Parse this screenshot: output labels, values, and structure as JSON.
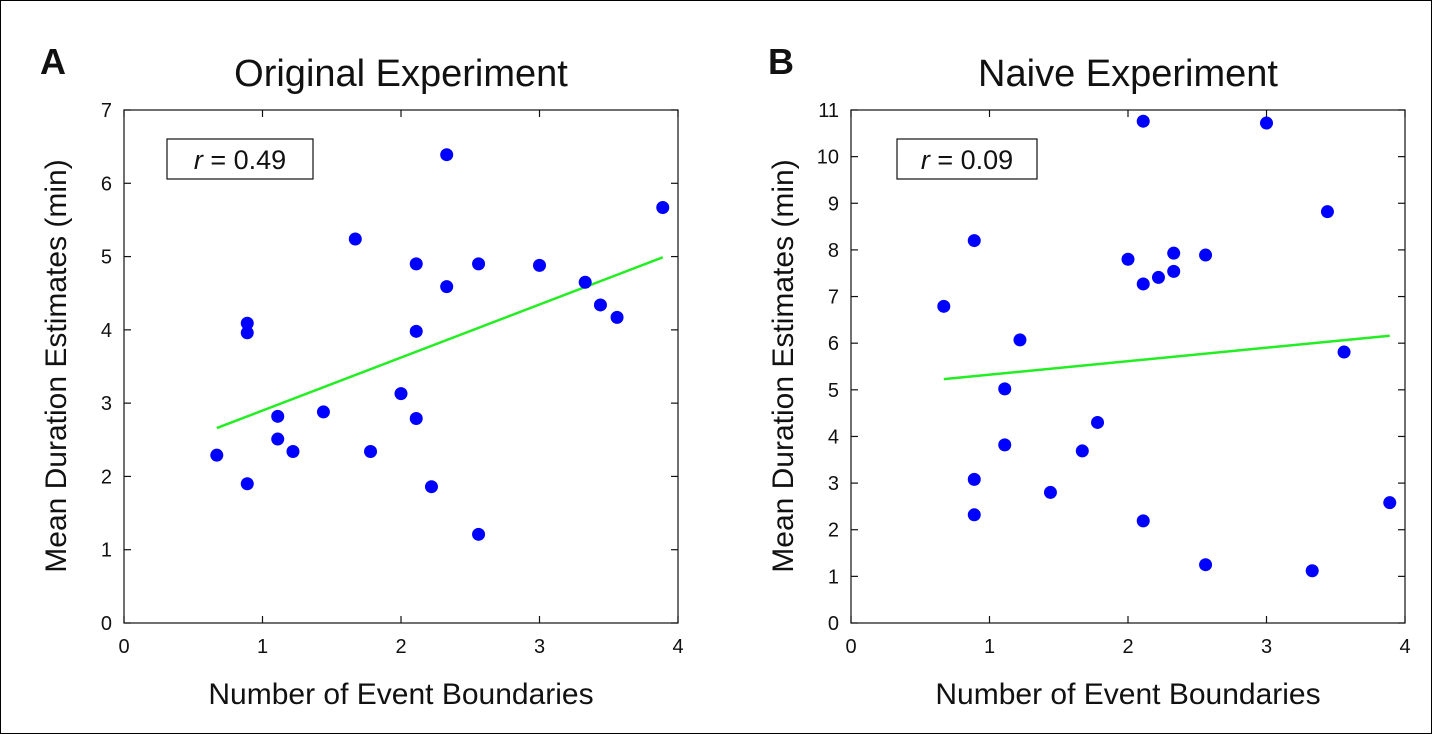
{
  "chart_data": [
    {
      "type": "scatter",
      "panel_letter": "A",
      "title": "Original Experiment",
      "xlabel": "Number of Event Boundaries",
      "ylabel": "Mean Duration Estimates (min)",
      "xlim": [
        0,
        4
      ],
      "ylim": [
        0,
        7
      ],
      "xticks": [
        "0",
        "1",
        "2",
        "3",
        "4"
      ],
      "yticks": [
        "0",
        "1",
        "2",
        "3",
        "4",
        "5",
        "6",
        "7"
      ],
      "grid": false,
      "annotation": {
        "r_symbol": "r",
        "r_value": "= 0.49"
      },
      "point_color": "#0000ff",
      "line_color": "#22ee22",
      "fit_line": [
        [
          0.67,
          2.66
        ],
        [
          3.89,
          4.99
        ]
      ],
      "points": [
        [
          0.67,
          2.29
        ],
        [
          0.89,
          4.09
        ],
        [
          0.89,
          3.96
        ],
        [
          0.89,
          1.9
        ],
        [
          1.11,
          2.82
        ],
        [
          1.11,
          2.51
        ],
        [
          1.22,
          2.34
        ],
        [
          1.44,
          2.88
        ],
        [
          1.67,
          5.24
        ],
        [
          1.78,
          2.34
        ],
        [
          2.0,
          3.13
        ],
        [
          2.11,
          4.9
        ],
        [
          2.11,
          3.98
        ],
        [
          2.11,
          2.79
        ],
        [
          2.22,
          1.86
        ],
        [
          2.33,
          6.39
        ],
        [
          2.33,
          4.59
        ],
        [
          2.56,
          4.9
        ],
        [
          2.56,
          1.21
        ],
        [
          3.0,
          4.88
        ],
        [
          3.33,
          4.65
        ],
        [
          3.44,
          4.34
        ],
        [
          3.56,
          4.17
        ],
        [
          3.89,
          5.67
        ]
      ]
    },
    {
      "type": "scatter",
      "panel_letter": "B",
      "title": "Naive Experiment",
      "xlabel": "Number of Event Boundaries",
      "ylabel": "Mean Duration Estimates (min)",
      "xlim": [
        0,
        4
      ],
      "ylim": [
        0,
        11
      ],
      "xticks": [
        "0",
        "1",
        "2",
        "3",
        "4"
      ],
      "yticks": [
        "0",
        "1",
        "2",
        "3",
        "4",
        "5",
        "6",
        "7",
        "8",
        "9",
        "10",
        "11"
      ],
      "grid": false,
      "annotation": {
        "r_symbol": "r",
        "r_value": "= 0.09"
      },
      "point_color": "#0000ff",
      "line_color": "#22ee22",
      "fit_line": [
        [
          0.67,
          5.23
        ],
        [
          3.89,
          6.16
        ]
      ],
      "points": [
        [
          0.67,
          6.79
        ],
        [
          0.89,
          8.2
        ],
        [
          0.89,
          3.08
        ],
        [
          0.89,
          2.32
        ],
        [
          1.11,
          5.02
        ],
        [
          1.11,
          3.82
        ],
        [
          1.22,
          6.07
        ],
        [
          1.44,
          2.8
        ],
        [
          1.67,
          3.69
        ],
        [
          1.78,
          4.3
        ],
        [
          2.0,
          7.8
        ],
        [
          2.11,
          10.76
        ],
        [
          2.11,
          7.27
        ],
        [
          2.11,
          2.19
        ],
        [
          2.22,
          7.41
        ],
        [
          2.33,
          7.93
        ],
        [
          2.33,
          7.54
        ],
        [
          2.56,
          7.89
        ],
        [
          2.56,
          1.25
        ],
        [
          3.0,
          10.72
        ],
        [
          3.33,
          1.12
        ],
        [
          3.44,
          8.82
        ],
        [
          3.56,
          5.81
        ],
        [
          3.89,
          2.58
        ]
      ]
    }
  ]
}
